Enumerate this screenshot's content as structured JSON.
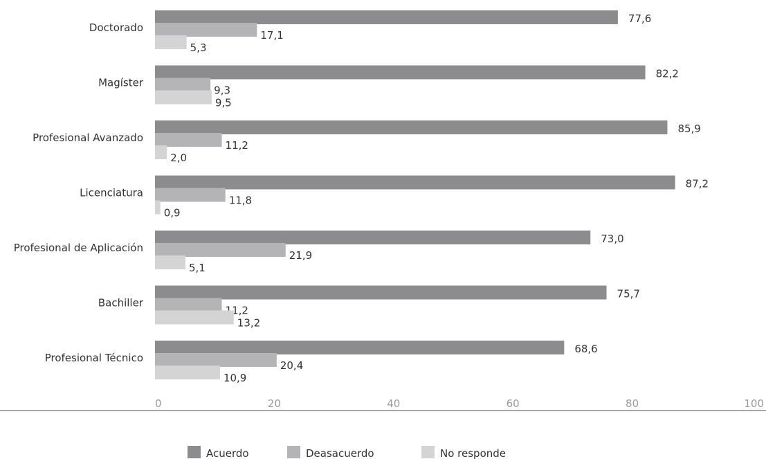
{
  "chart_data": {
    "type": "bar",
    "orientation": "horizontal",
    "categories": [
      "Doctorado",
      "Magíster",
      "Profesional Avanzado",
      "Licenciatura",
      "Profesional de Aplicación",
      "Bachiller",
      "Profesional Técnico"
    ],
    "series": [
      {
        "name": "Acuerdo",
        "color": "#8c8c8e",
        "values": [
          77.6,
          82.2,
          85.9,
          87.2,
          73.0,
          75.7,
          68.6
        ],
        "labels": [
          "77,6",
          "82,2",
          "85,9",
          "87,2",
          "73,0",
          "75,7",
          "68,6"
        ]
      },
      {
        "name": "Deasacuerdo",
        "color": "#b4b4b6",
        "values": [
          17.1,
          9.3,
          11.2,
          11.8,
          21.9,
          11.2,
          20.4
        ],
        "labels": [
          "17,1",
          "9,3",
          "11,2",
          "11,8",
          "21,9",
          "11,2",
          "20,4"
        ]
      },
      {
        "name": "No responde",
        "color": "#d4d4d5",
        "values": [
          5.3,
          9.5,
          2.0,
          0.9,
          5.1,
          13.2,
          10.9
        ],
        "labels": [
          "5,3",
          "9,5",
          "2,0",
          "0,9",
          "5,1",
          "13,2",
          "10,9"
        ]
      }
    ],
    "xlim": [
      0,
      100
    ],
    "xticks": [
      0,
      20,
      40,
      60,
      80,
      100
    ],
    "xtick_labels": [
      "0",
      "20",
      "40",
      "60",
      "80",
      "100"
    ],
    "grid": false,
    "legend_position": "bottom-center",
    "title": "",
    "xlabel": "",
    "ylabel": ""
  }
}
